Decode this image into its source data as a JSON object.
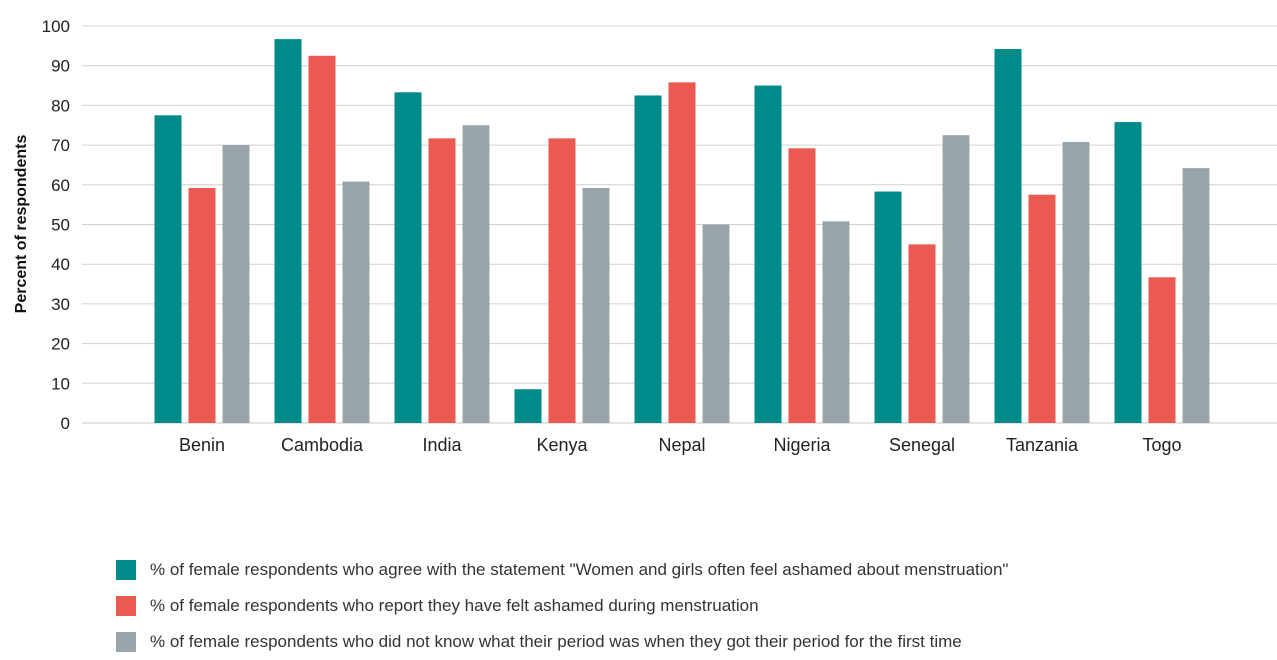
{
  "chart_data": {
    "type": "bar",
    "title": "",
    "xlabel": "",
    "ylabel": "Percent of respondents",
    "ylim": [
      0,
      100
    ],
    "yticks": [
      0,
      10,
      20,
      30,
      40,
      50,
      60,
      70,
      80,
      90,
      100
    ],
    "grid": true,
    "legend_position": "bottom",
    "categories": [
      "Benin",
      "Cambodia",
      "India",
      "Kenya",
      "Nepal",
      "Nigeria",
      "Senegal",
      "Tanzania",
      "Togo"
    ],
    "series": [
      {
        "name": "% of female respondents who agree with the statement \"Women and girls often feel ashamed about menstruation\"",
        "color": "#008b8b",
        "values": [
          77.5,
          96.7,
          83.3,
          8.5,
          82.5,
          85,
          58.3,
          94.2,
          75.8
        ]
      },
      {
        "name": "% of female respondents who report they have felt ashamed during menstruation",
        "color": "#eb5a50",
        "values": [
          59.2,
          92.5,
          71.7,
          71.7,
          85.8,
          69.2,
          45,
          57.5,
          36.7
        ]
      },
      {
        "name": "% of female respondents who did not know what their period was when they got their period for the first time",
        "color": "#98a4aa",
        "values": [
          70,
          60.8,
          75,
          59.2,
          50,
          50.8,
          72.5,
          70.8,
          64.2
        ]
      }
    ]
  }
}
